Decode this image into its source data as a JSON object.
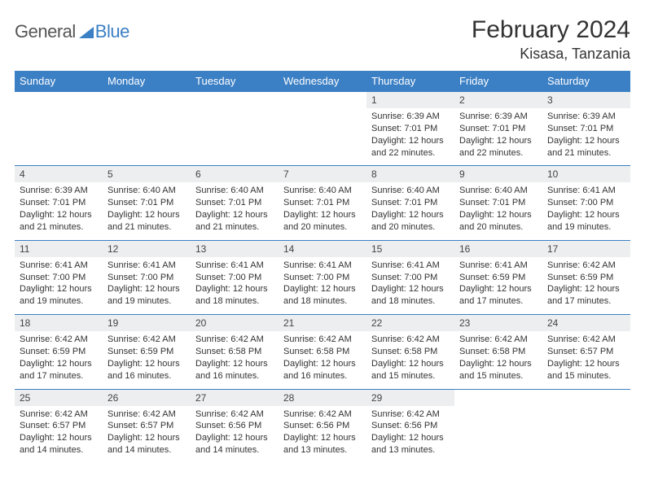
{
  "logo": {
    "general": "General",
    "blue": "Blue"
  },
  "header": {
    "month": "February 2024",
    "location": "Kisasa, Tanzania"
  },
  "weekdays": [
    "Sunday",
    "Monday",
    "Tuesday",
    "Wednesday",
    "Thursday",
    "Friday",
    "Saturday"
  ],
  "colors": {
    "header_bg": "#3b7fc4",
    "header_fg": "#ffffff",
    "daynum_bg": "#eceeef",
    "border": "#3b7fc4",
    "text": "#333333"
  },
  "weeks": [
    [
      null,
      null,
      null,
      null,
      {
        "n": "1",
        "sunrise": "Sunrise: 6:39 AM",
        "sunset": "Sunset: 7:01 PM",
        "d1": "Daylight: 12 hours",
        "d2": "and 22 minutes."
      },
      {
        "n": "2",
        "sunrise": "Sunrise: 6:39 AM",
        "sunset": "Sunset: 7:01 PM",
        "d1": "Daylight: 12 hours",
        "d2": "and 22 minutes."
      },
      {
        "n": "3",
        "sunrise": "Sunrise: 6:39 AM",
        "sunset": "Sunset: 7:01 PM",
        "d1": "Daylight: 12 hours",
        "d2": "and 21 minutes."
      }
    ],
    [
      {
        "n": "4",
        "sunrise": "Sunrise: 6:39 AM",
        "sunset": "Sunset: 7:01 PM",
        "d1": "Daylight: 12 hours",
        "d2": "and 21 minutes."
      },
      {
        "n": "5",
        "sunrise": "Sunrise: 6:40 AM",
        "sunset": "Sunset: 7:01 PM",
        "d1": "Daylight: 12 hours",
        "d2": "and 21 minutes."
      },
      {
        "n": "6",
        "sunrise": "Sunrise: 6:40 AM",
        "sunset": "Sunset: 7:01 PM",
        "d1": "Daylight: 12 hours",
        "d2": "and 21 minutes."
      },
      {
        "n": "7",
        "sunrise": "Sunrise: 6:40 AM",
        "sunset": "Sunset: 7:01 PM",
        "d1": "Daylight: 12 hours",
        "d2": "and 20 minutes."
      },
      {
        "n": "8",
        "sunrise": "Sunrise: 6:40 AM",
        "sunset": "Sunset: 7:01 PM",
        "d1": "Daylight: 12 hours",
        "d2": "and 20 minutes."
      },
      {
        "n": "9",
        "sunrise": "Sunrise: 6:40 AM",
        "sunset": "Sunset: 7:01 PM",
        "d1": "Daylight: 12 hours",
        "d2": "and 20 minutes."
      },
      {
        "n": "10",
        "sunrise": "Sunrise: 6:41 AM",
        "sunset": "Sunset: 7:00 PM",
        "d1": "Daylight: 12 hours",
        "d2": "and 19 minutes."
      }
    ],
    [
      {
        "n": "11",
        "sunrise": "Sunrise: 6:41 AM",
        "sunset": "Sunset: 7:00 PM",
        "d1": "Daylight: 12 hours",
        "d2": "and 19 minutes."
      },
      {
        "n": "12",
        "sunrise": "Sunrise: 6:41 AM",
        "sunset": "Sunset: 7:00 PM",
        "d1": "Daylight: 12 hours",
        "d2": "and 19 minutes."
      },
      {
        "n": "13",
        "sunrise": "Sunrise: 6:41 AM",
        "sunset": "Sunset: 7:00 PM",
        "d1": "Daylight: 12 hours",
        "d2": "and 18 minutes."
      },
      {
        "n": "14",
        "sunrise": "Sunrise: 6:41 AM",
        "sunset": "Sunset: 7:00 PM",
        "d1": "Daylight: 12 hours",
        "d2": "and 18 minutes."
      },
      {
        "n": "15",
        "sunrise": "Sunrise: 6:41 AM",
        "sunset": "Sunset: 7:00 PM",
        "d1": "Daylight: 12 hours",
        "d2": "and 18 minutes."
      },
      {
        "n": "16",
        "sunrise": "Sunrise: 6:41 AM",
        "sunset": "Sunset: 6:59 PM",
        "d1": "Daylight: 12 hours",
        "d2": "and 17 minutes."
      },
      {
        "n": "17",
        "sunrise": "Sunrise: 6:42 AM",
        "sunset": "Sunset: 6:59 PM",
        "d1": "Daylight: 12 hours",
        "d2": "and 17 minutes."
      }
    ],
    [
      {
        "n": "18",
        "sunrise": "Sunrise: 6:42 AM",
        "sunset": "Sunset: 6:59 PM",
        "d1": "Daylight: 12 hours",
        "d2": "and 17 minutes."
      },
      {
        "n": "19",
        "sunrise": "Sunrise: 6:42 AM",
        "sunset": "Sunset: 6:59 PM",
        "d1": "Daylight: 12 hours",
        "d2": "and 16 minutes."
      },
      {
        "n": "20",
        "sunrise": "Sunrise: 6:42 AM",
        "sunset": "Sunset: 6:58 PM",
        "d1": "Daylight: 12 hours",
        "d2": "and 16 minutes."
      },
      {
        "n": "21",
        "sunrise": "Sunrise: 6:42 AM",
        "sunset": "Sunset: 6:58 PM",
        "d1": "Daylight: 12 hours",
        "d2": "and 16 minutes."
      },
      {
        "n": "22",
        "sunrise": "Sunrise: 6:42 AM",
        "sunset": "Sunset: 6:58 PM",
        "d1": "Daylight: 12 hours",
        "d2": "and 15 minutes."
      },
      {
        "n": "23",
        "sunrise": "Sunrise: 6:42 AM",
        "sunset": "Sunset: 6:58 PM",
        "d1": "Daylight: 12 hours",
        "d2": "and 15 minutes."
      },
      {
        "n": "24",
        "sunrise": "Sunrise: 6:42 AM",
        "sunset": "Sunset: 6:57 PM",
        "d1": "Daylight: 12 hours",
        "d2": "and 15 minutes."
      }
    ],
    [
      {
        "n": "25",
        "sunrise": "Sunrise: 6:42 AM",
        "sunset": "Sunset: 6:57 PM",
        "d1": "Daylight: 12 hours",
        "d2": "and 14 minutes."
      },
      {
        "n": "26",
        "sunrise": "Sunrise: 6:42 AM",
        "sunset": "Sunset: 6:57 PM",
        "d1": "Daylight: 12 hours",
        "d2": "and 14 minutes."
      },
      {
        "n": "27",
        "sunrise": "Sunrise: 6:42 AM",
        "sunset": "Sunset: 6:56 PM",
        "d1": "Daylight: 12 hours",
        "d2": "and 14 minutes."
      },
      {
        "n": "28",
        "sunrise": "Sunrise: 6:42 AM",
        "sunset": "Sunset: 6:56 PM",
        "d1": "Daylight: 12 hours",
        "d2": "and 13 minutes."
      },
      {
        "n": "29",
        "sunrise": "Sunrise: 6:42 AM",
        "sunset": "Sunset: 6:56 PM",
        "d1": "Daylight: 12 hours",
        "d2": "and 13 minutes."
      },
      null,
      null
    ]
  ]
}
